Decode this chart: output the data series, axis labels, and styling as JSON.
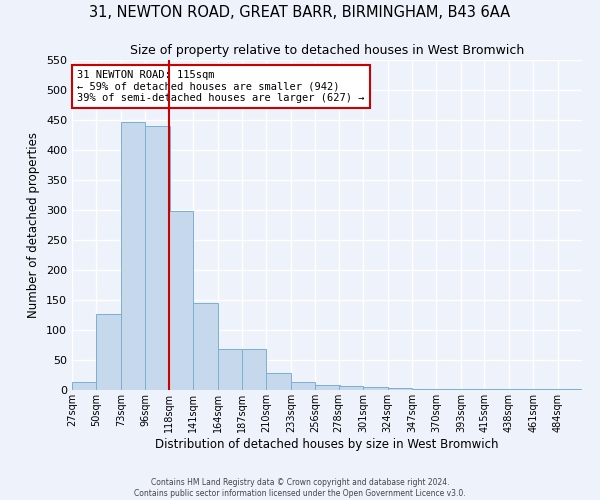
{
  "title": "31, NEWTON ROAD, GREAT BARR, BIRMINGHAM, B43 6AA",
  "subtitle": "Size of property relative to detached houses in West Bromwich",
  "bar_heights": [
    13,
    127,
    447,
    440,
    298,
    145,
    68,
    68,
    28,
    14,
    8,
    7,
    5,
    3,
    2,
    2,
    2,
    1,
    2,
    1,
    1,
    6
  ],
  "bin_edges": [
    27,
    50,
    73,
    96,
    118,
    141,
    164,
    187,
    210,
    233,
    256,
    278,
    301,
    324,
    347,
    370,
    393,
    415,
    438,
    461,
    484,
    507
  ],
  "tick_labels": [
    "27sqm",
    "50sqm",
    "73sqm",
    "96sqm",
    "118sqm",
    "141sqm",
    "164sqm",
    "187sqm",
    "210sqm",
    "233sqm",
    "256sqm",
    "278sqm",
    "301sqm",
    "324sqm",
    "347sqm",
    "370sqm",
    "393sqm",
    "415sqm",
    "438sqm",
    "461sqm",
    "484sqm"
  ],
  "xlabel": "Distribution of detached houses by size in West Bromwich",
  "ylabel": "Number of detached properties",
  "ylim": [
    0,
    550
  ],
  "yticks": [
    0,
    50,
    100,
    150,
    200,
    250,
    300,
    350,
    400,
    450,
    500,
    550
  ],
  "bar_color": "#c6d9ec",
  "bar_edge_color": "#7bafd4",
  "property_line_x": 118,
  "annotation_title": "31 NEWTON ROAD: 115sqm",
  "annotation_line1": "← 59% of detached houses are smaller (942)",
  "annotation_line2": "39% of semi-detached houses are larger (627) →",
  "annotation_box_color": "#ffffff",
  "annotation_box_edge_color": "#cc0000",
  "vline_color": "#cc0000",
  "footer1": "Contains HM Land Registry data © Crown copyright and database right 2024.",
  "footer2": "Contains public sector information licensed under the Open Government Licence v3.0.",
  "bg_color": "#eef2fb",
  "grid_color": "#ffffff",
  "title_fontsize": 10.5,
  "subtitle_fontsize": 9
}
